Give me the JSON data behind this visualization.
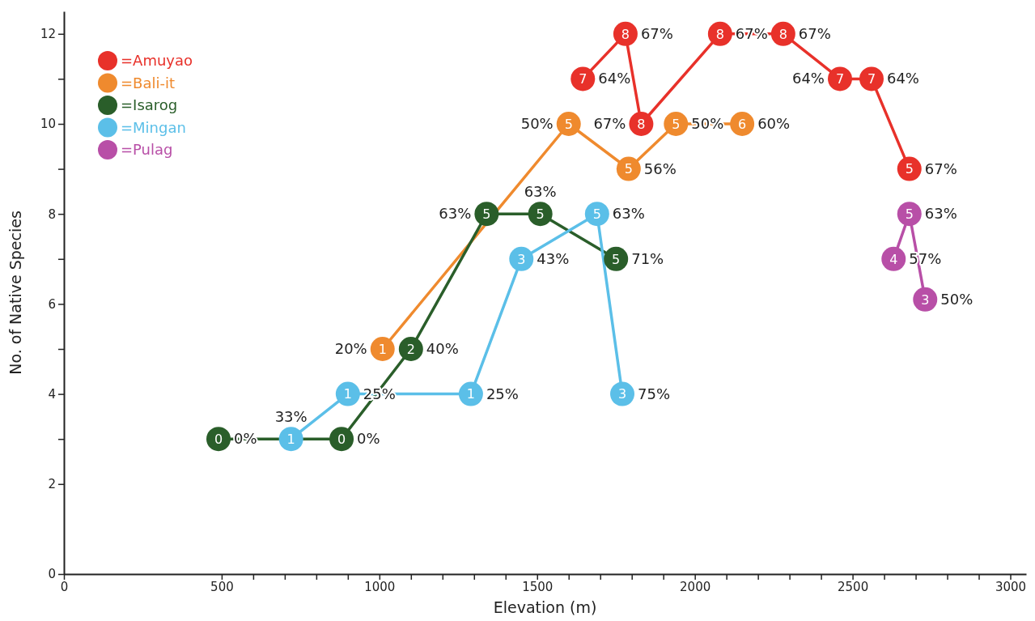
{
  "chart_data": {
    "type": "line",
    "xlabel": "Elevation (m)",
    "ylabel": "No. of Native Species",
    "xlim": [
      0,
      3050
    ],
    "ylim": [
      0,
      12.5
    ],
    "xticks": [
      0,
      500,
      {
        "value": 600,
        "label": null
      },
      {
        "value": 700,
        "label": null
      },
      {
        "value": 800,
        "label": null
      },
      {
        "value": 900,
        "label": null
      },
      1000,
      {
        "value": 1100,
        "label": null
      },
      {
        "value": 1200,
        "label": null
      },
      {
        "value": 1300,
        "label": null
      },
      {
        "value": 1400,
        "label": null
      },
      1500,
      {
        "value": 1600,
        "label": null
      },
      {
        "value": 1700,
        "label": null
      },
      {
        "value": 1800,
        "label": null
      },
      {
        "value": 1900,
        "label": null
      },
      2000,
      {
        "value": 2100,
        "label": null
      },
      {
        "value": 2200,
        "label": null
      },
      {
        "value": 2300,
        "label": null
      },
      {
        "value": 2400,
        "label": null
      },
      2500,
      {
        "value": 2600,
        "label": null
      },
      {
        "value": 2700,
        "label": null
      },
      {
        "value": 2800,
        "label": null
      },
      {
        "value": 2900,
        "label": null
      },
      3000
    ],
    "yticks": [
      0,
      2,
      {
        "value": 3,
        "label": null
      },
      4,
      {
        "value": 5,
        "label": null
      },
      6,
      {
        "value": 7,
        "label": null
      },
      8,
      {
        "value": 9,
        "label": null
      },
      10,
      {
        "value": 11,
        "label": null
      },
      12
    ],
    "marker": "circle",
    "legend": "top left",
    "series": [
      {
        "name": "=Amuyao",
        "color": "#e8312a",
        "x": [
          1645,
          1780,
          1830,
          2080,
          2280,
          2460,
          2560,
          2680
        ],
        "values": [
          11,
          12,
          10,
          12,
          12,
          11,
          11,
          9
        ]
      },
      {
        "name": "=Bali-it",
        "color": "#ef8a2e",
        "x": [
          1010,
          1600,
          1790,
          1940,
          2150
        ],
        "values": [
          5,
          10,
          9,
          10,
          10
        ]
      },
      {
        "name": "=Isarog",
        "color": "#2a5e2a",
        "x": [
          490,
          880,
          1100,
          1340,
          1510,
          1750
        ],
        "values": [
          3,
          3,
          5,
          8,
          8,
          7
        ]
      },
      {
        "name": "=Mingan",
        "color": "#5bbfe8",
        "x": [
          720,
          900,
          1290,
          1450,
          1690,
          1770
        ],
        "values": [
          3,
          4,
          4,
          7,
          8,
          4
        ]
      },
      {
        "name": "=Pulag",
        "color": "#b84fa7",
        "x": [
          2630,
          2680,
          2730
        ],
        "values": [
          7,
          8,
          6.1
        ]
      }
    ],
    "annotations": [
      {
        "text": "7",
        "x": 1645,
        "y": 11
      },
      {
        "text": "64%",
        "x": 1645,
        "y": 11
      },
      {
        "text": "8",
        "x": 1780,
        "y": 12
      },
      {
        "text": "67%",
        "x": 1780,
        "y": 12
      },
      {
        "text": "8",
        "x": 1830,
        "y": 10
      },
      {
        "text": "67%",
        "x": 1830,
        "y": 10
      },
      {
        "text": "8",
        "x": 2080,
        "y": 12
      },
      {
        "text": "67%",
        "x": 2080,
        "y": 12
      },
      {
        "text": "8",
        "x": 2280,
        "y": 12
      },
      {
        "text": "67%",
        "x": 2280,
        "y": 12
      },
      {
        "text": "7",
        "x": 2460,
        "y": 11
      },
      {
        "text": "64%",
        "x": 2460,
        "y": 11
      },
      {
        "text": "7",
        "x": 2560,
        "y": 11
      },
      {
        "text": "64%",
        "x": 2560,
        "y": 11
      },
      {
        "text": "5",
        "x": 2680,
        "y": 9
      },
      {
        "text": "67%",
        "x": 2680,
        "y": 9
      },
      {
        "text": "1",
        "x": 1010,
        "y": 5
      },
      {
        "text": "20%",
        "x": 1010,
        "y": 5
      },
      {
        "text": "5",
        "x": 1600,
        "y": 10
      },
      {
        "text": "50%",
        "x": 1600,
        "y": 10
      },
      {
        "text": "5",
        "x": 1790,
        "y": 9
      },
      {
        "text": "56%",
        "x": 1790,
        "y": 9
      },
      {
        "text": "5",
        "x": 1940,
        "y": 10
      },
      {
        "text": "50%",
        "x": 1940,
        "y": 10
      },
      {
        "text": "6",
        "x": 2150,
        "y": 10
      },
      {
        "text": "60%",
        "x": 2150,
        "y": 10
      },
      {
        "text": "0",
        "x": 490,
        "y": 3
      },
      {
        "text": "0%",
        "x": 490,
        "y": 3
      },
      {
        "text": "0",
        "x": 880,
        "y": 3
      },
      {
        "text": "0%",
        "x": 880,
        "y": 3
      },
      {
        "text": "2",
        "x": 1100,
        "y": 5
      },
      {
        "text": "40%",
        "x": 1100,
        "y": 5
      },
      {
        "text": "5",
        "x": 1340,
        "y": 8
      },
      {
        "text": "63%",
        "x": 1340,
        "y": 8
      },
      {
        "text": "5",
        "x": 1510,
        "y": 8
      },
      {
        "text": "63%",
        "x": 1510,
        "y": 8
      },
      {
        "text": "5",
        "x": 1750,
        "y": 7
      },
      {
        "text": "71%",
        "x": 1750,
        "y": 7
      },
      {
        "text": "1",
        "x": 720,
        "y": 3
      },
      {
        "text": "33%",
        "x": 720,
        "y": 3
      },
      {
        "text": "1",
        "x": 900,
        "y": 4
      },
      {
        "text": "25%",
        "x": 900,
        "y": 4
      },
      {
        "text": "1",
        "x": 1290,
        "y": 4
      },
      {
        "text": "25%",
        "x": 1290,
        "y": 4
      },
      {
        "text": "3",
        "x": 1450,
        "y": 7
      },
      {
        "text": "43%",
        "x": 1450,
        "y": 7
      },
      {
        "text": "5",
        "x": 1690,
        "y": 8
      },
      {
        "text": "63%",
        "x": 1690,
        "y": 8
      },
      {
        "text": "3",
        "x": 1770,
        "y": 4
      },
      {
        "text": "75%",
        "x": 1770,
        "y": 4
      },
      {
        "text": "4",
        "x": 2630,
        "y": 7
      },
      {
        "text": "57%",
        "x": 2630,
        "y": 7
      },
      {
        "text": "5",
        "x": 2680,
        "y": 8
      },
      {
        "text": "63%",
        "x": 2680,
        "y": 8
      },
      {
        "text": "3",
        "x": 2730,
        "y": 6.1
      },
      {
        "text": "50%",
        "x": 2730,
        "y": 6.1
      }
    ]
  }
}
